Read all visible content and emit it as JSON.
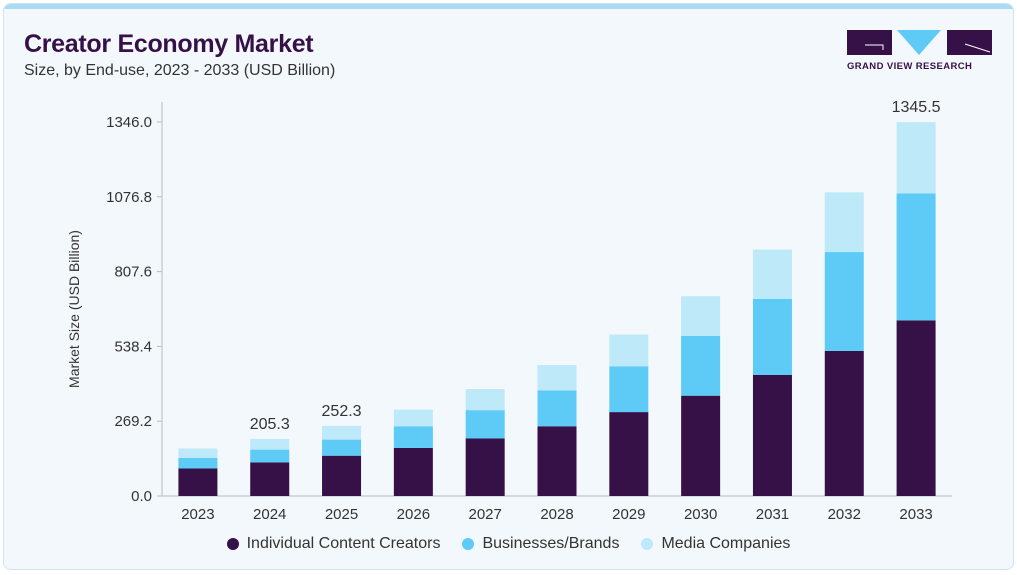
{
  "header": {
    "title": "Creator Economy Market",
    "subtitle": "Size, by End-use, 2023 - 2033 (USD Billion)"
  },
  "logo": {
    "text": "GRAND VIEW RESEARCH"
  },
  "chart_data": {
    "type": "bar",
    "stacked": true,
    "ylabel": "Market Size (USD Billion)",
    "xlabel": "",
    "ylim": [
      0,
      1346.0
    ],
    "yticks": [
      "0.0",
      "269.2",
      "538.4",
      "807.6",
      "1076.8",
      "1346.0"
    ],
    "grid": false,
    "legend_position": "bottom",
    "categories": [
      "2023",
      "2024",
      "2025",
      "2026",
      "2027",
      "2028",
      "2029",
      "2030",
      "2031",
      "2032",
      "2033"
    ],
    "series": [
      {
        "name": "Individual Content Creators",
        "color": "#361148",
        "values": [
          99,
          121,
          145,
          173,
          207,
          251,
          302,
          361,
          436,
          522,
          632
        ]
      },
      {
        "name": "Businesses/Brands",
        "color": "#5ecaf6",
        "values": [
          38,
          46,
          58,
          78,
          102,
          129,
          165,
          215,
          273,
          356,
          457
        ]
      },
      {
        "name": "Media Companies",
        "color": "#bde9f9",
        "values": [
          34,
          38.3,
          49.3,
          60,
          76,
          91,
          114,
          143,
          178,
          215,
          256.5
        ]
      }
    ],
    "data_labels": [
      {
        "category": "2024",
        "text": "205.3"
      },
      {
        "category": "2025",
        "text": "252.3"
      },
      {
        "category": "2033",
        "text": "1345.5"
      }
    ]
  }
}
